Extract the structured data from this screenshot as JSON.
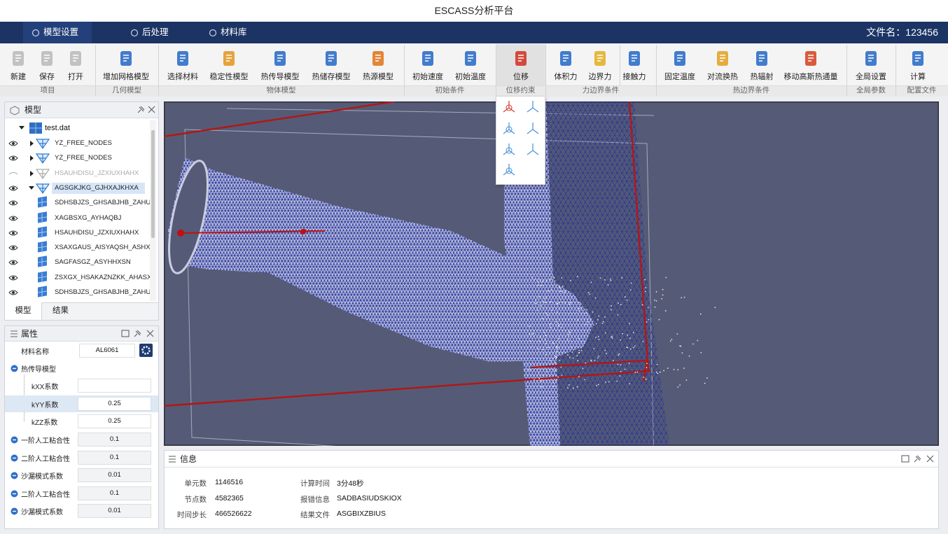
{
  "window": {
    "title": "ESCASS分析平台"
  },
  "menu": {
    "tabs": [
      "模型设置",
      "后处理",
      "材料库"
    ],
    "file_name": "文件名：123456"
  },
  "ribbon": {
    "groups": [
      {
        "label": "项目",
        "buttons": [
          "新建",
          "保存",
          "打开"
        ]
      },
      {
        "label": "几何模型",
        "buttons": [
          "增加网格模型"
        ]
      },
      {
        "label": "物体模型",
        "buttons": [
          "选择材料",
          "稳定性模型",
          "热传导模型",
          "热储存模型",
          "热源模型"
        ]
      },
      {
        "label": "初始条件",
        "buttons": [
          "初始速度",
          "初始温度"
        ]
      },
      {
        "label": "位移约束",
        "buttons": [
          "位移"
        ]
      },
      {
        "label": "力边界条件",
        "buttons": [
          "体积力",
          "边界力",
          "接触力"
        ]
      },
      {
        "label": "热边界条件",
        "buttons": [
          "固定温度",
          "对流换热",
          "热辐射",
          "移动高斯热通量"
        ]
      },
      {
        "label": "全局参数",
        "buttons": [
          "全局设置"
        ]
      },
      {
        "label": "配置文件",
        "buttons": [
          "计算"
        ]
      }
    ]
  },
  "model_panel": {
    "title": "模型",
    "root": "test.dat",
    "items": [
      {
        "name": "YZ_FREE_NODES",
        "visible": true
      },
      {
        "name": "YZ_FREE_NODES",
        "visible": true
      },
      {
        "name": "HSAUHDISU_JZXIUXHAHX",
        "visible": false
      },
      {
        "name": "AGSGKJKG_GJHXAJKHXA",
        "visible": true,
        "selected": true,
        "children": [
          "SDHSBJZS_GHSABJHB_ZAHU",
          "XAGBSXG_AYHAQBJ",
          "HSAUHDISU_JZXIUXHAHX",
          "XSAXGAUS_AISYAQSH_ASHX",
          "SAGFASGZ_ASYHHXSN",
          "ZSXGX_HSAKAZNZKK_AHASX",
          "SDHSBJZS_GHSABJHB_ZAHU"
        ]
      }
    ],
    "tabs": [
      "模型",
      "结果"
    ]
  },
  "properties_panel": {
    "title": "属性",
    "material": {
      "label": "材料名称",
      "value": "AL6061"
    },
    "section": "热传导模型",
    "coefficients": [
      {
        "label": "kXX系数"
      },
      {
        "label": "kYY系数",
        "value": "0.25",
        "selected": true
      },
      {
        "label": "kZZ系数",
        "value": "0.25"
      }
    ],
    "parameters": [
      {
        "label": "一阶人工粘合性",
        "value": "0.1"
      },
      {
        "label": "二阶人工粘合性",
        "value": "0.1"
      },
      {
        "label": "沙漏模式系数",
        "value": "0.01"
      },
      {
        "label": "二阶人工粘合性",
        "value": "0.1"
      },
      {
        "label": "沙漏模式系数",
        "value": "0.01"
      }
    ]
  },
  "info_panel": {
    "title": "信息",
    "items": [
      {
        "label": "单元数",
        "value": "1146516"
      },
      {
        "label": "节点数",
        "value": "4582365"
      },
      {
        "label": "时间步长",
        "value": "466526622"
      },
      {
        "label": "计算时间",
        "value": "3分48秒"
      },
      {
        "label": "报错信息",
        "value": "SADBASIUDSKIOX"
      },
      {
        "label": "结果文件",
        "value": "ASGBIXZBIUS"
      }
    ]
  }
}
